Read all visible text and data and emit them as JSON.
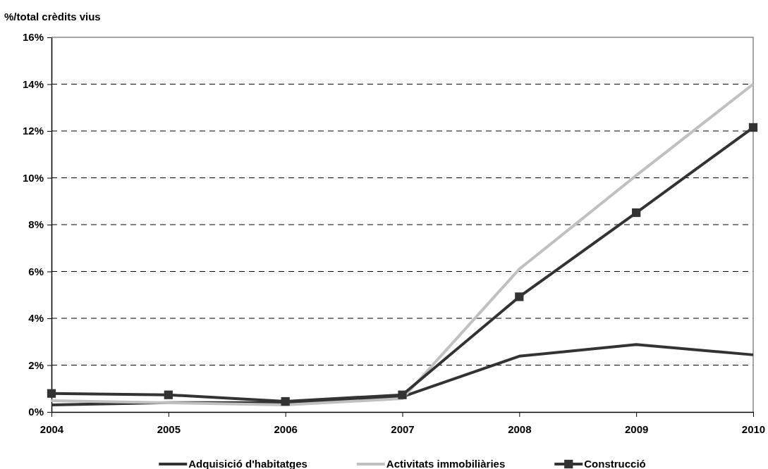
{
  "chart_data": {
    "type": "line",
    "ylabel": "%/total crèdits vius",
    "categories": [
      "2004",
      "2005",
      "2006",
      "2007",
      "2008",
      "2009",
      "2010"
    ],
    "series": [
      {
        "name": "Adquisició d'habitatges",
        "color": "#333333",
        "values": [
          0.3,
          0.4,
          0.4,
          0.65,
          2.38,
          2.88,
          2.44
        ]
      },
      {
        "name": "Activitats immobiliàries",
        "color": "#c0c0c0",
        "values": [
          0.48,
          0.39,
          0.3,
          0.57,
          6.1,
          10.1,
          14.0
        ]
      },
      {
        "name": "Construcció",
        "color": "#333333",
        "marker": "square",
        "values": [
          0.79,
          0.73,
          0.45,
          0.73,
          4.92,
          8.51,
          12.15
        ]
      }
    ],
    "ylim": [
      0,
      16
    ],
    "yticks": [
      {
        "value": 0,
        "label": "0%"
      },
      {
        "value": 2,
        "label": "2%"
      },
      {
        "value": 4,
        "label": "4%"
      },
      {
        "value": 6,
        "label": "6%"
      },
      {
        "value": 8,
        "label": "8%"
      },
      {
        "value": 10,
        "label": "10%"
      },
      {
        "value": 12,
        "label": "12%"
      },
      {
        "value": 14,
        "label": "14%"
      },
      {
        "value": 16,
        "label": "16%"
      }
    ],
    "grid": "y",
    "legend": "bottom",
    "marker": "none",
    "line_style": "solid"
  }
}
